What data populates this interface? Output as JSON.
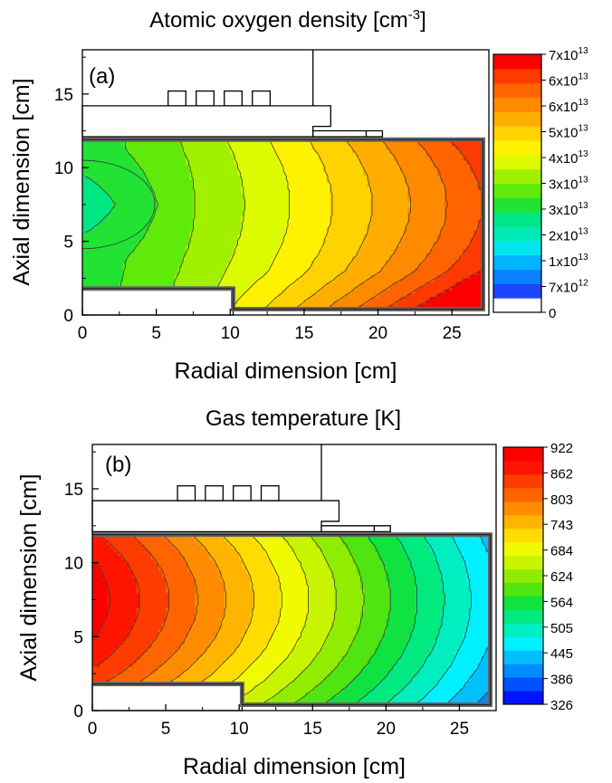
{
  "chart_data": [
    {
      "type": "heatmap",
      "panel_label": "(a)",
      "title_main": "Atomic oxygen density [cm",
      "title_sup": "-3",
      "title_end": "]",
      "xlabel": "Radial dimension [cm]",
      "ylabel": "Axial dimension [cm]",
      "xlim": [
        0,
        27.5
      ],
      "ylim": [
        0,
        18
      ],
      "xticks": [
        "0",
        "5",
        "10",
        "15",
        "20",
        "25"
      ],
      "yticks": [
        "0",
        "5",
        "10",
        "15"
      ],
      "colorbar_labels": [
        {
          "base": "7x10",
          "exp": "13"
        },
        {
          "base": "6x10",
          "exp": "13"
        },
        {
          "base": "6x10",
          "exp": "13"
        },
        {
          "base": "5x10",
          "exp": "13"
        },
        {
          "base": "4x10",
          "exp": "13"
        },
        {
          "base": "3x10",
          "exp": "13"
        },
        {
          "base": "3x10",
          "exp": "13"
        },
        {
          "base": "2x10",
          "exp": "13"
        },
        {
          "base": "1x10",
          "exp": "13"
        },
        {
          "base": "7x10",
          "exp": "12"
        },
        {
          "base": "0",
          "exp": ""
        }
      ],
      "color_levels": [
        "#ffffff",
        "#1e46ff",
        "#0a80ff",
        "#00b4ff",
        "#00e6f0",
        "#00eab8",
        "#00e682",
        "#22e234",
        "#60ea0a",
        "#a0f000",
        "#dcfa00",
        "#fff200",
        "#ffd200",
        "#ffae00",
        "#ff8a00",
        "#ff6400",
        "#ff3a00",
        "#ff0000"
      ],
      "field": {
        "peak_level": 16,
        "center_level": 7.5,
        "center_r": 1.5,
        "center_z": 7.5
      }
    },
    {
      "type": "heatmap",
      "panel_label": "(b)",
      "title_main": "Gas temperature [K]",
      "title_sup": "",
      "title_end": "",
      "xlabel": "Radial dimension [cm]",
      "ylabel": "Axial dimension [cm]",
      "xlim": [
        0,
        27.5
      ],
      "ylim": [
        0,
        18
      ],
      "xticks": [
        "0",
        "5",
        "10",
        "15",
        "20",
        "25"
      ],
      "yticks": [
        "0",
        "5",
        "10",
        "15"
      ],
      "colorbar_labels": [
        {
          "base": "922",
          "exp": ""
        },
        {
          "base": "862",
          "exp": ""
        },
        {
          "base": "803",
          "exp": ""
        },
        {
          "base": "743",
          "exp": ""
        },
        {
          "base": "684",
          "exp": ""
        },
        {
          "base": "624",
          "exp": ""
        },
        {
          "base": "564",
          "exp": ""
        },
        {
          "base": "505",
          "exp": ""
        },
        {
          "base": "445",
          "exp": ""
        },
        {
          "base": "386",
          "exp": ""
        },
        {
          "base": "326",
          "exp": ""
        }
      ],
      "color_levels": [
        "#0014ff",
        "#0050ff",
        "#008cff",
        "#00c0ff",
        "#00f0ff",
        "#00eec0",
        "#00ea80",
        "#10e240",
        "#50e410",
        "#90ec00",
        "#c8f400",
        "#f0fa00",
        "#ffdc00",
        "#ffb400",
        "#ff8c00",
        "#ff6400",
        "#ff3c00",
        "#ff1400",
        "#ff0000"
      ],
      "field": {
        "peak_level": 18.5,
        "edge_level": 4
      }
    }
  ]
}
